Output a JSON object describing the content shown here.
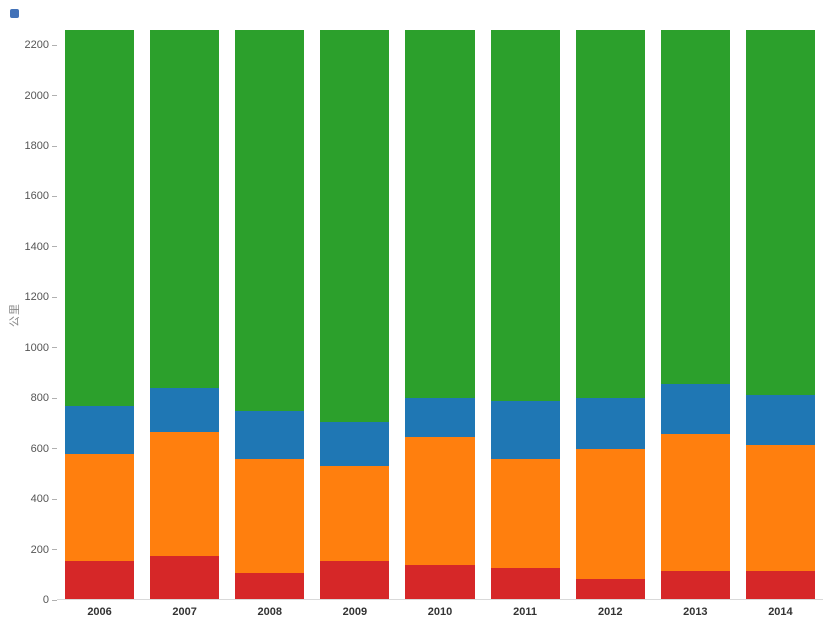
{
  "corner_marker": {
    "color": "#4272b8"
  },
  "chart_data": {
    "type": "bar",
    "stacked": true,
    "title": "",
    "xlabel": "",
    "ylabel": "公里",
    "ylim": [
      0,
      2260
    ],
    "yticks": [
      0,
      200,
      400,
      600,
      800,
      1000,
      1200,
      1400,
      1600,
      1800,
      2000,
      2200
    ],
    "grid": false,
    "legend": "none",
    "categories": [
      "2006",
      "2007",
      "2008",
      "2009",
      "2010",
      "2011",
      "2012",
      "2013",
      "2014"
    ],
    "series": [
      {
        "name": "red",
        "color": "#d62728",
        "values": [
          150,
          170,
          105,
          150,
          135,
          125,
          80,
          110,
          110
        ]
      },
      {
        "name": "orange",
        "color": "#ff7f0e",
        "values": [
          425,
          495,
          450,
          380,
          510,
          430,
          515,
          545,
          500
        ]
      },
      {
        "name": "blue",
        "color": "#1f77b4",
        "values": [
          190,
          175,
          190,
          175,
          155,
          230,
          205,
          200,
          200
        ]
      },
      {
        "name": "green",
        "color": "#2ca02c",
        "values": [
          1495,
          1420,
          1515,
          1555,
          1460,
          1475,
          1460,
          1405,
          1450
        ]
      }
    ]
  }
}
